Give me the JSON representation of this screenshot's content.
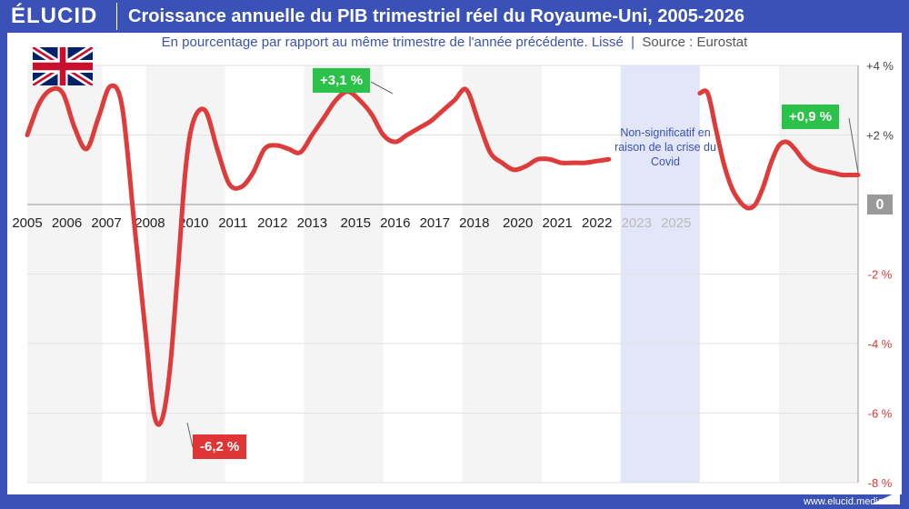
{
  "brand": "ÉLUCID",
  "title": "Croissance annuelle du PIB trimestriel réel du Royaume-Uni, 2005-2026",
  "subtitle": "En pourcentage par rapport au même trimestre de l'année précédente. Lissé",
  "source": "Source : Eurostat",
  "footer": "www.elucid.media",
  "colors": {
    "brand": "#3a52b8",
    "line": "#de3b3b",
    "green": "#2bc24a",
    "red": "#e03535",
    "covid": "#e3e5f8"
  },
  "covid_note": "Non-significatif en raison de la crise du Covid",
  "chart_data": {
    "type": "line",
    "title": "Croissance annuelle du PIB trimestriel réel du Royaume-Uni, 2005-2026",
    "ylabel": "",
    "ylim": [
      -8,
      4
    ],
    "yticks": [
      "+4 %",
      "+2 %",
      "0",
      "-2 %",
      "-4 %",
      "-6 %",
      "-8 %"
    ],
    "xticks": [
      "2005",
      "2006",
      "2007",
      "2008",
      "2010",
      "2011",
      "2012",
      "2013",
      "2015",
      "2016",
      "2017",
      "2018",
      "2020",
      "2021",
      "2022",
      "2023",
      "2025"
    ],
    "covid_band": [
      2020.0,
      2022.0
    ],
    "annotations": [
      {
        "text": "+3,1 %",
        "color": "green"
      },
      {
        "text": "-6,2 %",
        "color": "red"
      },
      {
        "text": "+0,9 %",
        "color": "green"
      }
    ],
    "series": [
      {
        "x": [
          2005.0,
          2005.3,
          2005.6,
          2005.9,
          2006.2,
          2006.5,
          2006.8,
          2007.1,
          2007.4,
          2007.7,
          2008.0,
          2008.2,
          2008.4,
          2008.6,
          2008.8,
          2009.0,
          2009.2,
          2009.5,
          2009.8,
          2010.1,
          2010.4,
          2010.7,
          2011.0,
          2011.3,
          2011.6,
          2011.9,
          2012.2,
          2012.5,
          2012.8,
          2013.1,
          2013.4,
          2013.7,
          2014.0,
          2014.3,
          2014.6,
          2014.9,
          2015.2,
          2015.5,
          2015.8,
          2016.1,
          2016.4,
          2016.7,
          2017.0,
          2017.3,
          2017.6,
          2017.9,
          2018.2,
          2018.5,
          2018.8,
          2019.1,
          2019.4,
          2019.7
        ],
        "y": [
          2.0,
          2.9,
          3.3,
          3.2,
          2.2,
          1.6,
          2.5,
          3.4,
          2.8,
          -0.5,
          -3.8,
          -6.0,
          -6.2,
          -4.8,
          -2.0,
          1.0,
          2.4,
          2.7,
          1.6,
          0.6,
          0.5,
          0.9,
          1.6,
          1.7,
          1.6,
          1.5,
          2.0,
          2.5,
          3.0,
          3.25,
          3.0,
          2.6,
          2.0,
          1.8,
          2.0,
          2.2,
          2.4,
          2.7,
          3.0,
          3.3,
          2.4,
          1.5,
          1.2,
          1.0,
          1.1,
          1.3,
          1.3,
          1.2,
          1.2,
          1.2,
          1.25,
          1.3
        ]
      },
      {
        "x": [
          2022.0,
          2022.2,
          2022.4,
          2022.6,
          2022.8,
          2023.0,
          2023.2,
          2023.4,
          2023.6,
          2023.8,
          2024.0,
          2024.2,
          2024.4,
          2024.6,
          2024.8,
          2025.0,
          2025.2,
          2025.4,
          2025.6,
          2025.8,
          2026.0
        ],
        "y": [
          3.2,
          3.2,
          2.2,
          1.2,
          0.5,
          0.1,
          -0.1,
          0.0,
          0.5,
          1.2,
          1.7,
          1.8,
          1.6,
          1.3,
          1.1,
          1.0,
          0.95,
          0.9,
          0.85,
          0.85,
          0.85
        ]
      }
    ]
  }
}
